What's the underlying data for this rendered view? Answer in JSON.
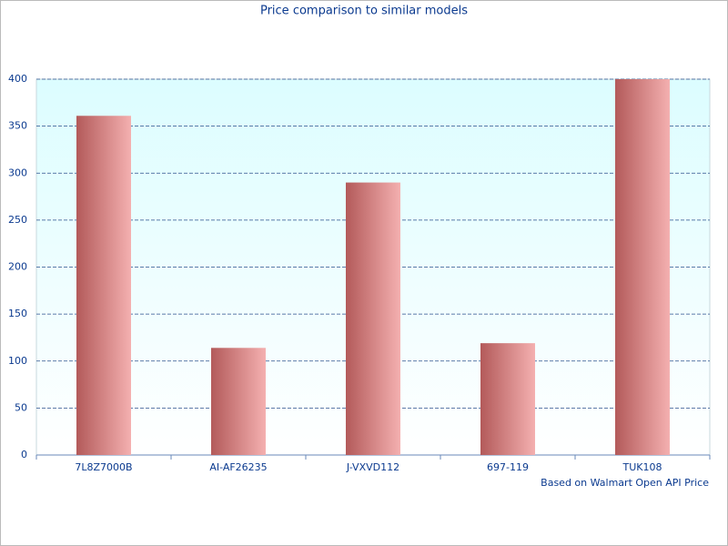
{
  "chart_data": {
    "type": "bar",
    "title": "Price comparison to similar models",
    "note": "Based on Walmart Open API Price",
    "categories": [
      "7L8Z7000B",
      "AI-AF26235",
      "J-VXVD112",
      "697-119",
      "TUK108"
    ],
    "values": [
      361,
      114,
      290,
      119,
      400
    ],
    "color": "#f4b0b0",
    "ylim": [
      0,
      400
    ],
    "yticks": [
      0,
      50,
      100,
      150,
      200,
      250,
      300,
      350,
      400
    ],
    "grid": true
  }
}
